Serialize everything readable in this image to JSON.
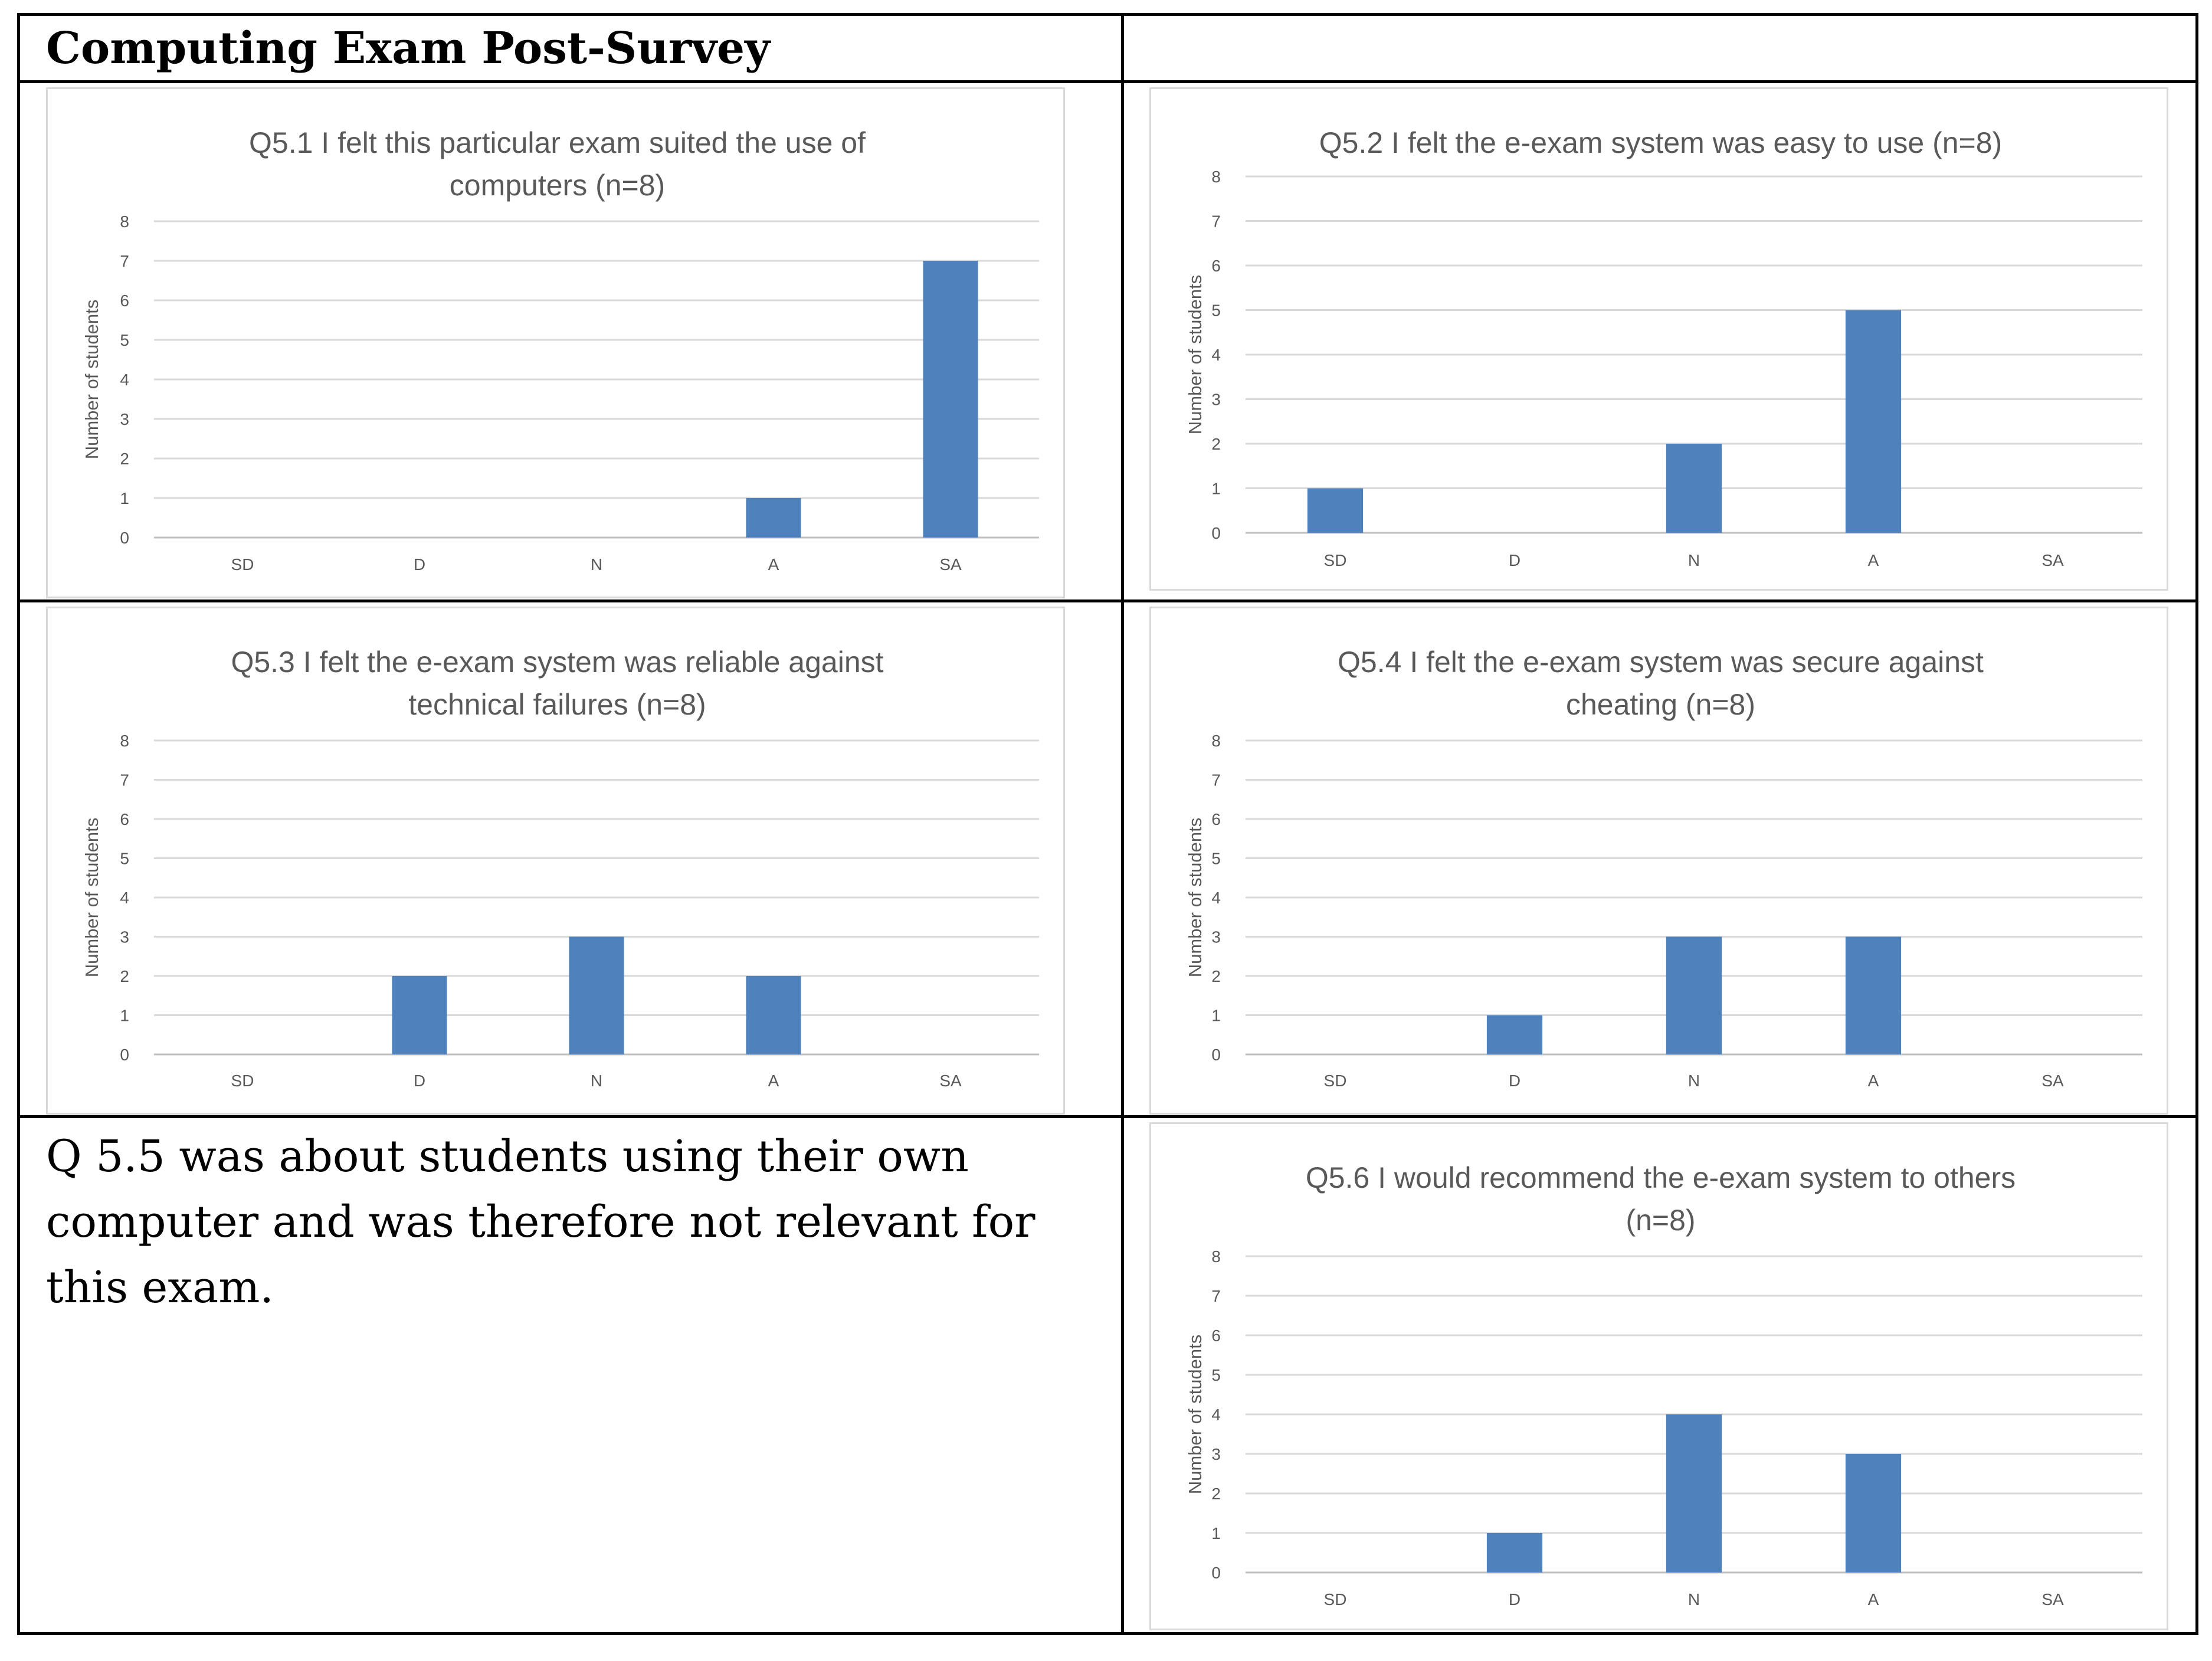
{
  "page": {
    "heading": "Computing Exam Post-Survey",
    "note": "Q 5.5 was about students using their own computer and was therefore not relevant for this exam."
  },
  "colors": {
    "bar": "#4f81bd",
    "text": "#595959",
    "grid": "#d9d9d9"
  },
  "chart_data": [
    {
      "type": "bar",
      "title_lines": [
        "Q5.1 I felt this particular exam suited the use of",
        "computers (n=8)"
      ],
      "categories": [
        "SD",
        "D",
        "N",
        "A",
        "SA"
      ],
      "values": [
        0,
        0,
        0,
        1,
        7
      ],
      "xlabel": "",
      "ylabel": "Number of students",
      "ylim": [
        0,
        8
      ],
      "yticks": [
        0,
        1,
        2,
        3,
        4,
        5,
        6,
        7,
        8
      ],
      "grid": true
    },
    {
      "type": "bar",
      "title_lines": [
        "Q5.2 I felt the e-exam system was easy to use (n=8)"
      ],
      "categories": [
        "SD",
        "D",
        "N",
        "A",
        "SA"
      ],
      "values": [
        1,
        0,
        2,
        5,
        0
      ],
      "xlabel": "",
      "ylabel": "Number of students",
      "ylim": [
        0,
        8
      ],
      "yticks": [
        0,
        1,
        2,
        3,
        4,
        5,
        6,
        7,
        8
      ],
      "grid": true
    },
    {
      "type": "bar",
      "title_lines": [
        "Q5.3 I felt the e-exam system was reliable against",
        "technical failures (n=8)"
      ],
      "categories": [
        "SD",
        "D",
        "N",
        "A",
        "SA"
      ],
      "values": [
        0,
        2,
        3,
        2,
        0
      ],
      "xlabel": "",
      "ylabel": "Number of students",
      "ylim": [
        0,
        8
      ],
      "yticks": [
        0,
        1,
        2,
        3,
        4,
        5,
        6,
        7,
        8
      ],
      "grid": true
    },
    {
      "type": "bar",
      "title_lines": [
        "Q5.4 I felt the e-exam system was secure against",
        "cheating (n=8)"
      ],
      "categories": [
        "SD",
        "D",
        "N",
        "A",
        "SA"
      ],
      "values": [
        0,
        1,
        3,
        3,
        0
      ],
      "xlabel": "",
      "ylabel": "Number of students",
      "ylim": [
        0,
        8
      ],
      "yticks": [
        0,
        1,
        2,
        3,
        4,
        5,
        6,
        7,
        8
      ],
      "grid": true
    },
    {
      "type": "bar",
      "title_lines": [
        "Q5.6 I would recommend the e-exam system to others",
        "(n=8)"
      ],
      "categories": [
        "SD",
        "D",
        "N",
        "A",
        "SA"
      ],
      "values": [
        0,
        1,
        4,
        3,
        0
      ],
      "xlabel": "",
      "ylabel": "Number of students",
      "ylim": [
        0,
        8
      ],
      "yticks": [
        0,
        1,
        2,
        3,
        4,
        5,
        6,
        7,
        8
      ],
      "grid": true
    }
  ]
}
